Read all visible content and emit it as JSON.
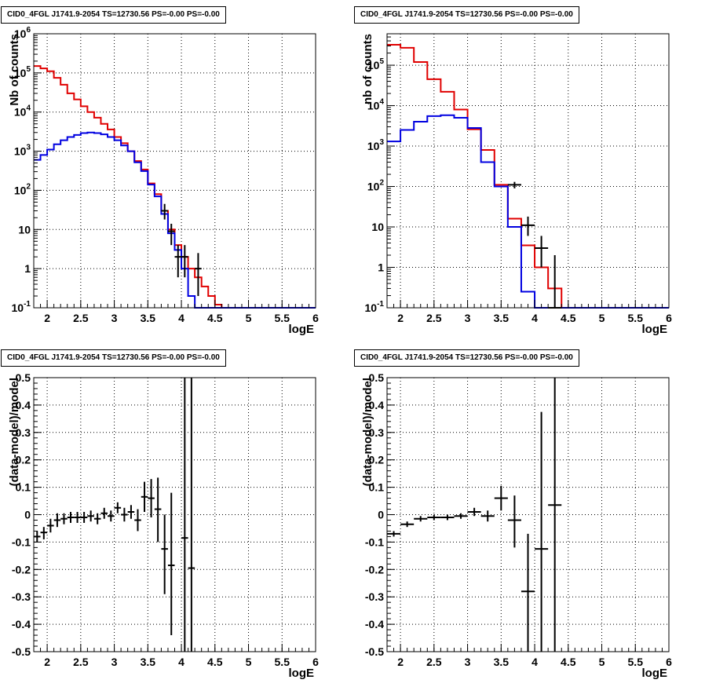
{
  "chart_data": [
    {
      "type": "line",
      "title": "CID0_4FGL J1741.9-2054 TS=12730.56 PS=-0.00 PS=-0.00",
      "xlabel": "logE",
      "ylabel": "Nb of counts",
      "yscale": "log",
      "xlim": [
        1.8,
        6.0
      ],
      "ylim": [
        0.1,
        1000000
      ],
      "x_ticks": [
        "2",
        "2.5",
        "3",
        "3.5",
        "4",
        "4.5",
        "5",
        "5.5",
        "6"
      ],
      "y_ticks": [
        "10^-1",
        "1",
        "10",
        "10^2",
        "10^3",
        "10^4",
        "10^5",
        "10^6"
      ],
      "grid": true,
      "bin_edges": [
        1.8,
        1.9,
        2.0,
        2.1,
        2.2,
        2.3,
        2.4,
        2.5,
        2.6,
        2.7,
        2.8,
        2.9,
        3.0,
        3.1,
        3.2,
        3.3,
        3.4,
        3.5,
        3.6,
        3.7,
        3.8,
        3.9,
        4.0,
        4.1,
        4.2,
        4.3,
        4.4,
        4.5,
        4.6,
        4.7,
        4.8,
        4.9,
        5.0,
        5.1,
        5.2,
        5.3,
        5.4,
        5.5,
        5.6,
        5.7,
        5.8,
        5.9,
        6.0
      ],
      "series": [
        {
          "color": "#e00000",
          "values": [
            150000,
            130000,
            110000,
            75000,
            50000,
            30000,
            21000,
            14000,
            10000,
            7200,
            5000,
            3600,
            2300,
            1600,
            1000,
            560,
            340,
            150,
            80,
            30,
            10,
            4,
            2,
            1,
            0.6,
            0.35,
            0.2,
            0.12,
            0.1,
            0.1,
            0.1,
            0.1,
            0.1,
            0.1,
            0.1,
            0.1,
            0.1,
            0.1,
            0.1,
            0.1,
            0.1,
            0.1
          ]
        },
        {
          "color": "#0000e0",
          "values": [
            600,
            800,
            1100,
            1500,
            1900,
            2300,
            2600,
            2900,
            3000,
            2900,
            2700,
            2300,
            1900,
            1400,
            1000,
            520,
            310,
            140,
            70,
            25,
            8,
            3,
            1,
            0.2,
            0.1,
            0.1,
            0.1,
            0.1,
            0.1,
            0.1,
            0.1,
            0.1,
            0.1,
            0.1,
            0.1,
            0.1,
            0.1,
            0.1,
            0.1,
            0.1,
            0.1,
            0.1
          ]
        }
      ],
      "data_points": [
        {
          "x": 3.75,
          "y": 30,
          "ylo": 18,
          "yhi": 45,
          "xerr": 0.05
        },
        {
          "x": 3.85,
          "y": 9,
          "ylo": 4,
          "yhi": 14,
          "xerr": 0.05
        },
        {
          "x": 3.95,
          "y": 2,
          "ylo": 0.6,
          "yhi": 4,
          "xerr": 0.05
        },
        {
          "x": 4.05,
          "y": 2,
          "ylo": 0.6,
          "yhi": 4,
          "xerr": 0.05
        },
        {
          "x": 4.25,
          "y": 1,
          "ylo": 0.2,
          "yhi": 2.5,
          "xerr": 0.05
        }
      ]
    },
    {
      "type": "line",
      "title": "CID0_4FGL J1741.9-2054 TS=12730.56 PS=-0.00 PS=-0.00",
      "xlabel": "logE",
      "ylabel": "nb of counts",
      "yscale": "log",
      "xlim": [
        1.8,
        6.0
      ],
      "ylim": [
        0.1,
        600000
      ],
      "x_ticks": [
        "2",
        "2.5",
        "3",
        "3.5",
        "4",
        "4.5",
        "5",
        "5.5",
        "6"
      ],
      "y_ticks": [
        "10^-1",
        "1",
        "10",
        "10^2",
        "10^3",
        "10^4",
        "10^5"
      ],
      "grid": true,
      "bin_edges": [
        1.8,
        2.0,
        2.2,
        2.4,
        2.6,
        2.8,
        3.0,
        3.2,
        3.4,
        3.6,
        3.8,
        4.0,
        4.2,
        4.4,
        4.6,
        4.8,
        5.0,
        5.2,
        5.4,
        5.6,
        5.8,
        6.0
      ],
      "series": [
        {
          "color": "#e00000",
          "values": [
            320000,
            270000,
            120000,
            45000,
            22000,
            8000,
            2600,
            800,
            110,
            16,
            3.5,
            1,
            0.3,
            0.1,
            0.1,
            0.1,
            0.1,
            0.1,
            0.1,
            0.1,
            0.1
          ]
        },
        {
          "color": "#0000e0",
          "values": [
            1300,
            2500,
            4000,
            5500,
            5800,
            5000,
            2800,
            400,
            100,
            10,
            0.25,
            0.1,
            0.1,
            0.1,
            0.1,
            0.1,
            0.1,
            0.1,
            0.1,
            0.1,
            0.1
          ]
        }
      ],
      "data_points": [
        {
          "x": 3.7,
          "y": 110,
          "ylo": 90,
          "yhi": 130,
          "xerr": 0.1
        },
        {
          "x": 3.9,
          "y": 11,
          "ylo": 6,
          "yhi": 18,
          "xerr": 0.1
        },
        {
          "x": 4.1,
          "y": 3,
          "ylo": 1,
          "yhi": 6,
          "xerr": 0.1
        },
        {
          "x": 4.3,
          "y": 0.1,
          "ylo": 0.1,
          "yhi": 2,
          "xerr": 0.1
        }
      ]
    },
    {
      "type": "scatter",
      "title": "CID0_4FGL J1741.9-2054 TS=12730.56 PS=-0.00 PS=-0.00",
      "xlabel": "logE",
      "ylabel": "(data-model)/model",
      "yscale": "linear",
      "xlim": [
        1.8,
        6.0
      ],
      "ylim": [
        -0.5,
        0.5
      ],
      "x_ticks": [
        "2",
        "2.5",
        "3",
        "3.5",
        "4",
        "4.5",
        "5",
        "5.5",
        "6"
      ],
      "y_ticks": [
        "-0.5",
        "-0.4",
        "-0.3",
        "-0.2",
        "-0.1",
        "0",
        "0.1",
        "0.2",
        "0.3",
        "0.4",
        "0.5"
      ],
      "grid": true,
      "points": [
        {
          "x": 1.85,
          "y": -0.08,
          "ylo": -0.1,
          "yhi": -0.06,
          "xerr": 0.05
        },
        {
          "x": 1.95,
          "y": -0.065,
          "ylo": -0.09,
          "yhi": -0.045,
          "xerr": 0.05
        },
        {
          "x": 2.05,
          "y": -0.04,
          "ylo": -0.065,
          "yhi": -0.015,
          "xerr": 0.05
        },
        {
          "x": 2.15,
          "y": -0.02,
          "ylo": -0.045,
          "yhi": 0.005,
          "xerr": 0.05
        },
        {
          "x": 2.25,
          "y": -0.015,
          "ylo": -0.035,
          "yhi": 0.005,
          "xerr": 0.05
        },
        {
          "x": 2.35,
          "y": -0.01,
          "ylo": -0.03,
          "yhi": 0.01,
          "xerr": 0.05
        },
        {
          "x": 2.45,
          "y": -0.01,
          "ylo": -0.03,
          "yhi": 0.01,
          "xerr": 0.05
        },
        {
          "x": 2.55,
          "y": -0.01,
          "ylo": -0.03,
          "yhi": 0.01,
          "xerr": 0.05
        },
        {
          "x": 2.65,
          "y": -0.005,
          "ylo": -0.025,
          "yhi": 0.015,
          "xerr": 0.05
        },
        {
          "x": 2.75,
          "y": -0.015,
          "ylo": -0.035,
          "yhi": 0.005,
          "xerr": 0.05
        },
        {
          "x": 2.85,
          "y": 0.005,
          "ylo": -0.015,
          "yhi": 0.025,
          "xerr": 0.05
        },
        {
          "x": 2.95,
          "y": -0.005,
          "ylo": -0.025,
          "yhi": 0.015,
          "xerr": 0.05
        },
        {
          "x": 3.05,
          "y": 0.025,
          "ylo": 0.005,
          "yhi": 0.045,
          "xerr": 0.05
        },
        {
          "x": 3.15,
          "y": 0.0,
          "ylo": -0.025,
          "yhi": 0.025,
          "xerr": 0.05
        },
        {
          "x": 3.25,
          "y": 0.01,
          "ylo": -0.015,
          "yhi": 0.035,
          "xerr": 0.05
        },
        {
          "x": 3.35,
          "y": -0.02,
          "ylo": -0.06,
          "yhi": 0.02,
          "xerr": 0.05
        },
        {
          "x": 3.45,
          "y": 0.065,
          "ylo": 0.01,
          "yhi": 0.12,
          "xerr": 0.05
        },
        {
          "x": 3.55,
          "y": 0.06,
          "ylo": -0.01,
          "yhi": 0.13,
          "xerr": 0.05
        },
        {
          "x": 3.65,
          "y": 0.02,
          "ylo": -0.1,
          "yhi": 0.135,
          "xerr": 0.05
        },
        {
          "x": 3.75,
          "y": -0.125,
          "ylo": -0.29,
          "yhi": 0.0,
          "xerr": 0.05
        },
        {
          "x": 3.85,
          "y": -0.185,
          "ylo": -0.44,
          "yhi": 0.08,
          "xerr": 0.05
        },
        {
          "x": 4.05,
          "y": -0.085,
          "ylo": -0.5,
          "yhi": 0.5,
          "xerr": 0.05
        },
        {
          "x": 4.15,
          "y": -0.195,
          "ylo": -0.5,
          "yhi": 0.5,
          "xerr": 0.05
        }
      ]
    },
    {
      "type": "scatter",
      "title": "CID0_4FGL J1741.9-2054 TS=12730.56 PS=-0.00 PS=-0.00",
      "xlabel": "logE",
      "ylabel": "(data-model)/model",
      "yscale": "linear",
      "xlim": [
        1.8,
        6.0
      ],
      "ylim": [
        -0.5,
        0.5
      ],
      "x_ticks": [
        "2",
        "2.5",
        "3",
        "3.5",
        "4",
        "4.5",
        "5",
        "5.5",
        "6"
      ],
      "y_ticks": [
        "-0.5",
        "-0.4",
        "-0.3",
        "-0.2",
        "-0.1",
        "0",
        "0.1",
        "0.2",
        "0.3",
        "0.4",
        "0.5"
      ],
      "grid": true,
      "points": [
        {
          "x": 1.9,
          "y": -0.07,
          "ylo": -0.08,
          "yhi": -0.06,
          "xerr": 0.1
        },
        {
          "x": 2.1,
          "y": -0.035,
          "ylo": -0.045,
          "yhi": -0.025,
          "xerr": 0.1
        },
        {
          "x": 2.3,
          "y": -0.015,
          "ylo": -0.025,
          "yhi": -0.005,
          "xerr": 0.1
        },
        {
          "x": 2.5,
          "y": -0.01,
          "ylo": -0.02,
          "yhi": 0.0,
          "xerr": 0.1
        },
        {
          "x": 2.7,
          "y": -0.01,
          "ylo": -0.02,
          "yhi": 0.0,
          "xerr": 0.1
        },
        {
          "x": 2.9,
          "y": -0.005,
          "ylo": -0.015,
          "yhi": 0.005,
          "xerr": 0.1
        },
        {
          "x": 3.1,
          "y": 0.01,
          "ylo": -0.005,
          "yhi": 0.025,
          "xerr": 0.1
        },
        {
          "x": 3.3,
          "y": -0.005,
          "ylo": -0.025,
          "yhi": 0.015,
          "xerr": 0.1
        },
        {
          "x": 3.5,
          "y": 0.06,
          "ylo": 0.015,
          "yhi": 0.105,
          "xerr": 0.1
        },
        {
          "x": 3.7,
          "y": -0.02,
          "ylo": -0.12,
          "yhi": 0.07,
          "xerr": 0.1
        },
        {
          "x": 3.9,
          "y": -0.28,
          "ylo": -0.5,
          "yhi": -0.07,
          "xerr": 0.1
        },
        {
          "x": 4.1,
          "y": -0.125,
          "ylo": -0.5,
          "yhi": 0.375,
          "xerr": 0.1
        },
        {
          "x": 4.3,
          "y": 0.035,
          "ylo": -0.5,
          "yhi": 0.5,
          "xerr": 0.1
        }
      ]
    }
  ]
}
